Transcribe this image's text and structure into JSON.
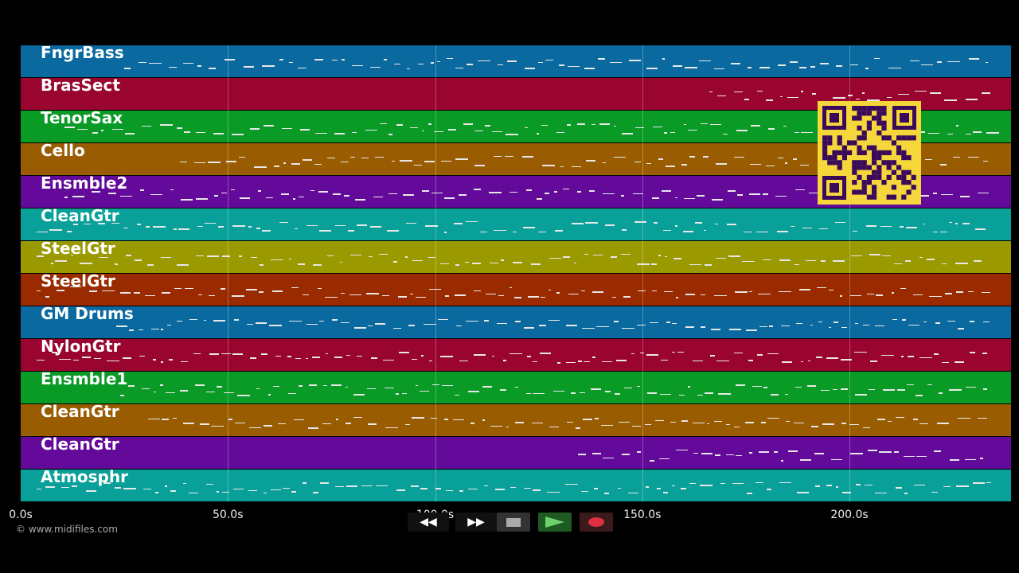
{
  "tracks": [
    {
      "name": "FngrBass",
      "color": "#0a6aa0"
    },
    {
      "name": "BrasSect",
      "color": "#9a0530"
    },
    {
      "name": "TenorSax",
      "color": "#0a9a26"
    },
    {
      "name": "Cello",
      "color": "#9a5c00"
    },
    {
      "name": "Ensmble2",
      "color": "#640a9a"
    },
    {
      "name": "CleanGtr",
      "color": "#0aa09a"
    },
    {
      "name": "SteelGtr",
      "color": "#9a9a00"
    },
    {
      "name": "SteelGtr",
      "color": "#9a2a00"
    },
    {
      "name": "GM Drums",
      "color": "#0a6aa0"
    },
    {
      "name": "NylonGtr",
      "color": "#9a0530"
    },
    {
      "name": "Ensmble1",
      "color": "#0a9a26"
    },
    {
      "name": "CleanGtr",
      "color": "#9a5c00"
    },
    {
      "name": "CleanGtr",
      "color": "#640a9a"
    },
    {
      "name": "Atmosphr",
      "color": "#0aa09a"
    }
  ],
  "timeline": {
    "ticks": [
      "0.0s",
      "50.0s",
      "100.0s",
      "150.0s",
      "200.0s"
    ],
    "tick_seconds": [
      0,
      50,
      100,
      150,
      200
    ],
    "duration_seconds": 239
  },
  "copyright": "© www.midifiles.com",
  "transport": {
    "rewind_icon": "rewind-icon",
    "fast_forward_icon": "fast-forward-icon",
    "stop_icon": "stop-icon",
    "play_icon": "play-icon",
    "record_icon": "record-icon"
  },
  "qr_code_icon": "qr-code-icon"
}
